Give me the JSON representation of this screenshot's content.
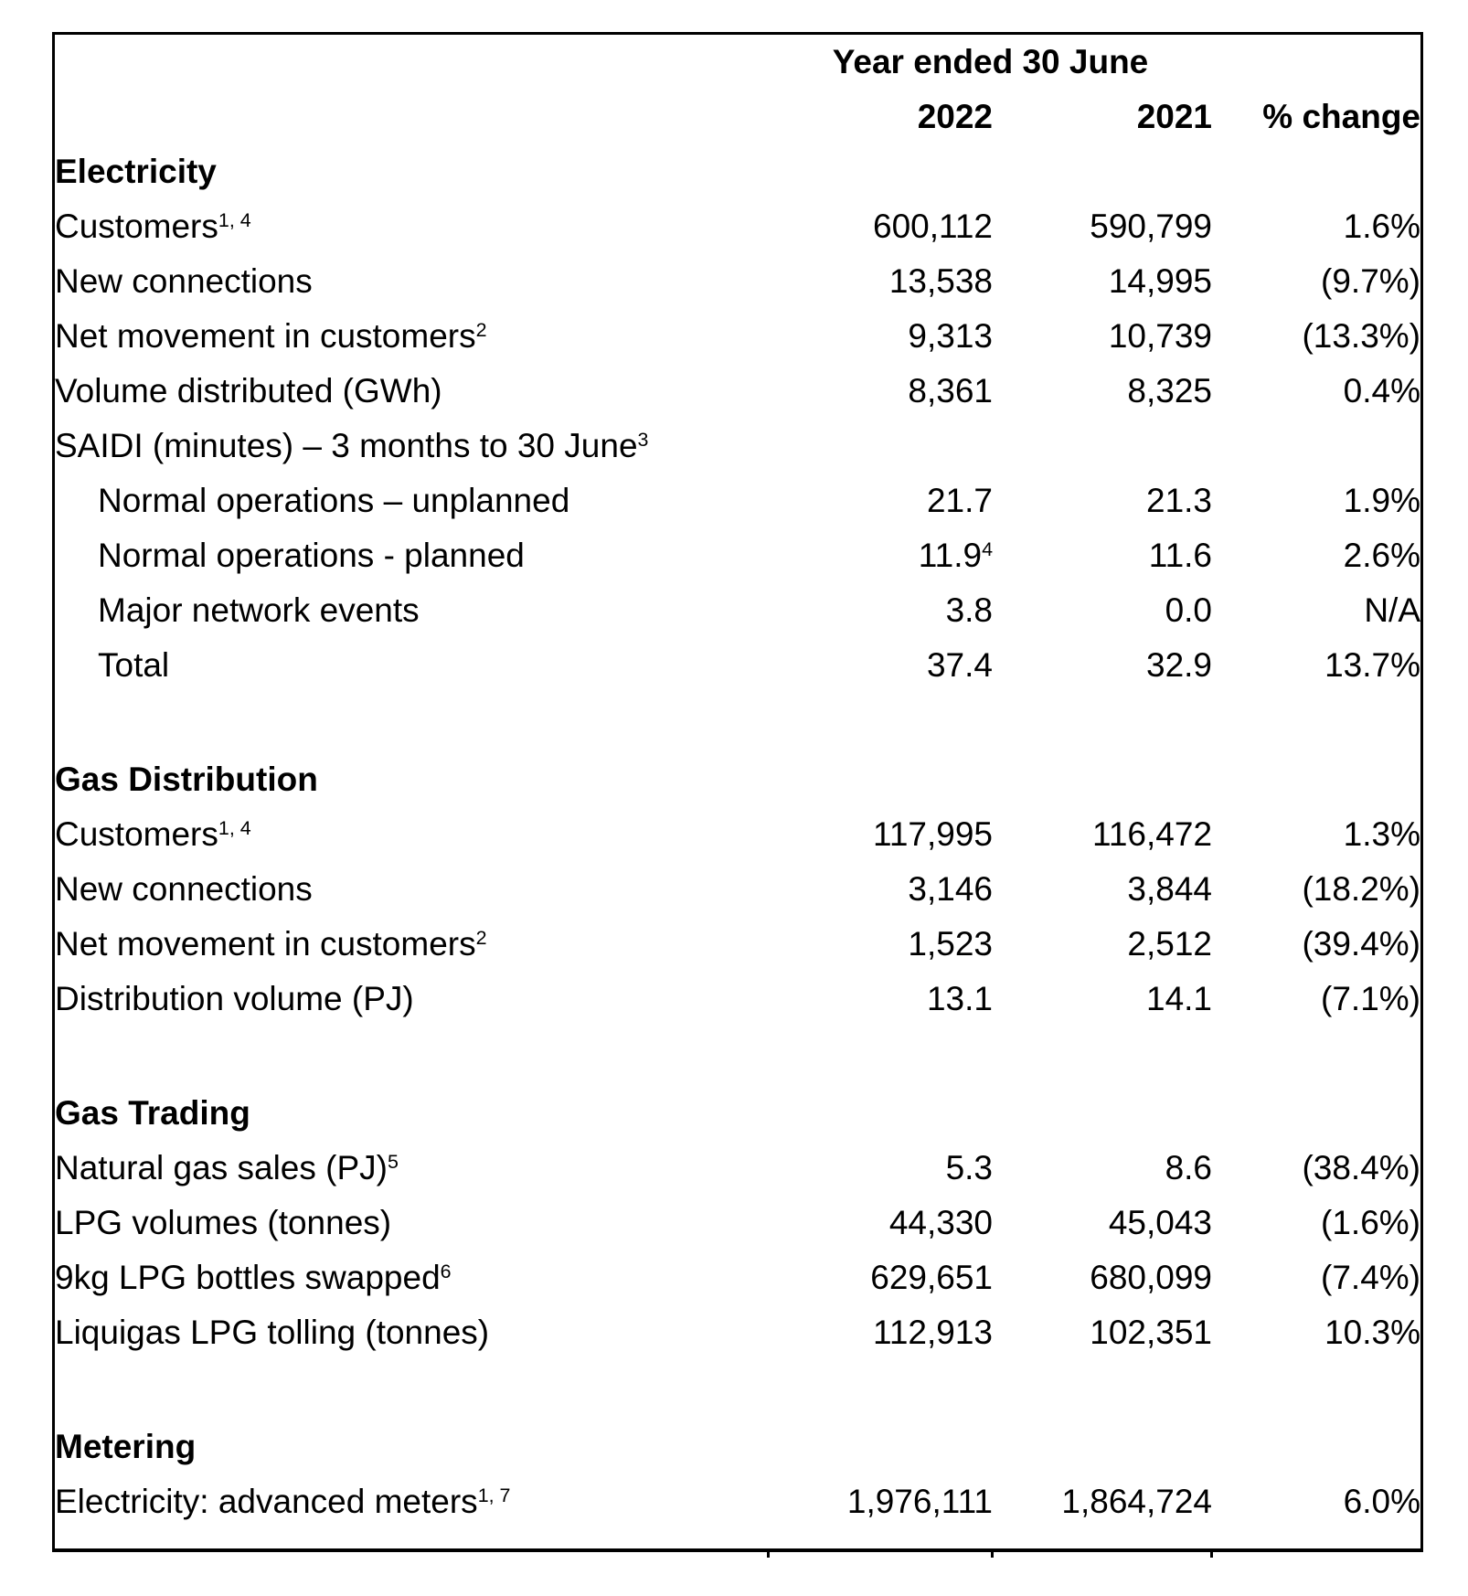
{
  "colors": {
    "text": "#000000",
    "background": "#ffffff",
    "border": "#000000"
  },
  "header": {
    "title": "Year ended 30 June",
    "columns": [
      "2022",
      "2021",
      "% change"
    ]
  },
  "sections": [
    {
      "title": "Electricity",
      "rows": [
        {
          "label": "Customers",
          "sup": "1, 4",
          "v2022": "600,112",
          "v2021": "590,799",
          "change": "1.6%"
        },
        {
          "label": "New connections",
          "v2022": "13,538",
          "v2021": "14,995",
          "change": "(9.7%)"
        },
        {
          "label": "Net movement in customers",
          "sup": "2",
          "v2022": "9,313",
          "v2021": "10,739",
          "change": "(13.3%)"
        },
        {
          "label": "Volume distributed (GWh)",
          "v2022": "8,361",
          "v2021": "8,325",
          "change": "0.4%"
        },
        {
          "label": "SAIDI (minutes) – 3 months to 30 June",
          "sup": "3",
          "v2022": "",
          "v2021": "",
          "change": ""
        },
        {
          "label": "Normal operations – unplanned",
          "indent": true,
          "v2022": "21.7",
          "v2021": "21.3",
          "change": "1.9%"
        },
        {
          "label": "Normal operations - planned",
          "indent": true,
          "v2022": "11.9",
          "v2022_sup": "4",
          "v2021": "11.6",
          "change": "2.6%"
        },
        {
          "label": "Major network events",
          "indent": true,
          "v2022": "3.8",
          "v2021": "0.0",
          "change": "N/A"
        },
        {
          "label": "Total",
          "indent": true,
          "v2022": "37.4",
          "v2021": "32.9",
          "change": "13.7%"
        }
      ]
    },
    {
      "title": "Gas Distribution",
      "rows": [
        {
          "label": "Customers",
          "sup": "1, 4",
          "v2022": "117,995",
          "v2021": "116,472",
          "change": "1.3%"
        },
        {
          "label": "New connections",
          "v2022": "3,146",
          "v2021": "3,844",
          "change": "(18.2%)"
        },
        {
          "label": "Net movement in customers",
          "sup": "2",
          "v2022": "1,523",
          "v2021": "2,512",
          "change": "(39.4%)"
        },
        {
          "label": "Distribution volume (PJ)",
          "v2022": "13.1",
          "v2021": "14.1",
          "change": "(7.1%)"
        }
      ]
    },
    {
      "title": "Gas Trading",
      "rows": [
        {
          "label": "Natural gas sales (PJ)",
          "sup": "5",
          "v2022": "5.3",
          "v2021": "8.6",
          "change": "(38.4%)"
        },
        {
          "label": "LPG volumes (tonnes)",
          "v2022": "44,330",
          "v2021": "45,043",
          "change": "(1.6%)"
        },
        {
          "label": "9kg LPG bottles swapped",
          "sup": "6",
          "v2022": "629,651",
          "v2021": "680,099",
          "change": "(7.4%)"
        },
        {
          "label": "Liquigas LPG tolling (tonnes)",
          "v2022": "112,913",
          "v2021": "102,351",
          "change": "10.3%"
        }
      ]
    },
    {
      "title": "Metering",
      "rows": [
        {
          "label": "Electricity: advanced meters",
          "sup": "1, 7",
          "v2022": "1,976,111",
          "v2021": "1,864,724",
          "change": "6.0%"
        }
      ]
    }
  ]
}
